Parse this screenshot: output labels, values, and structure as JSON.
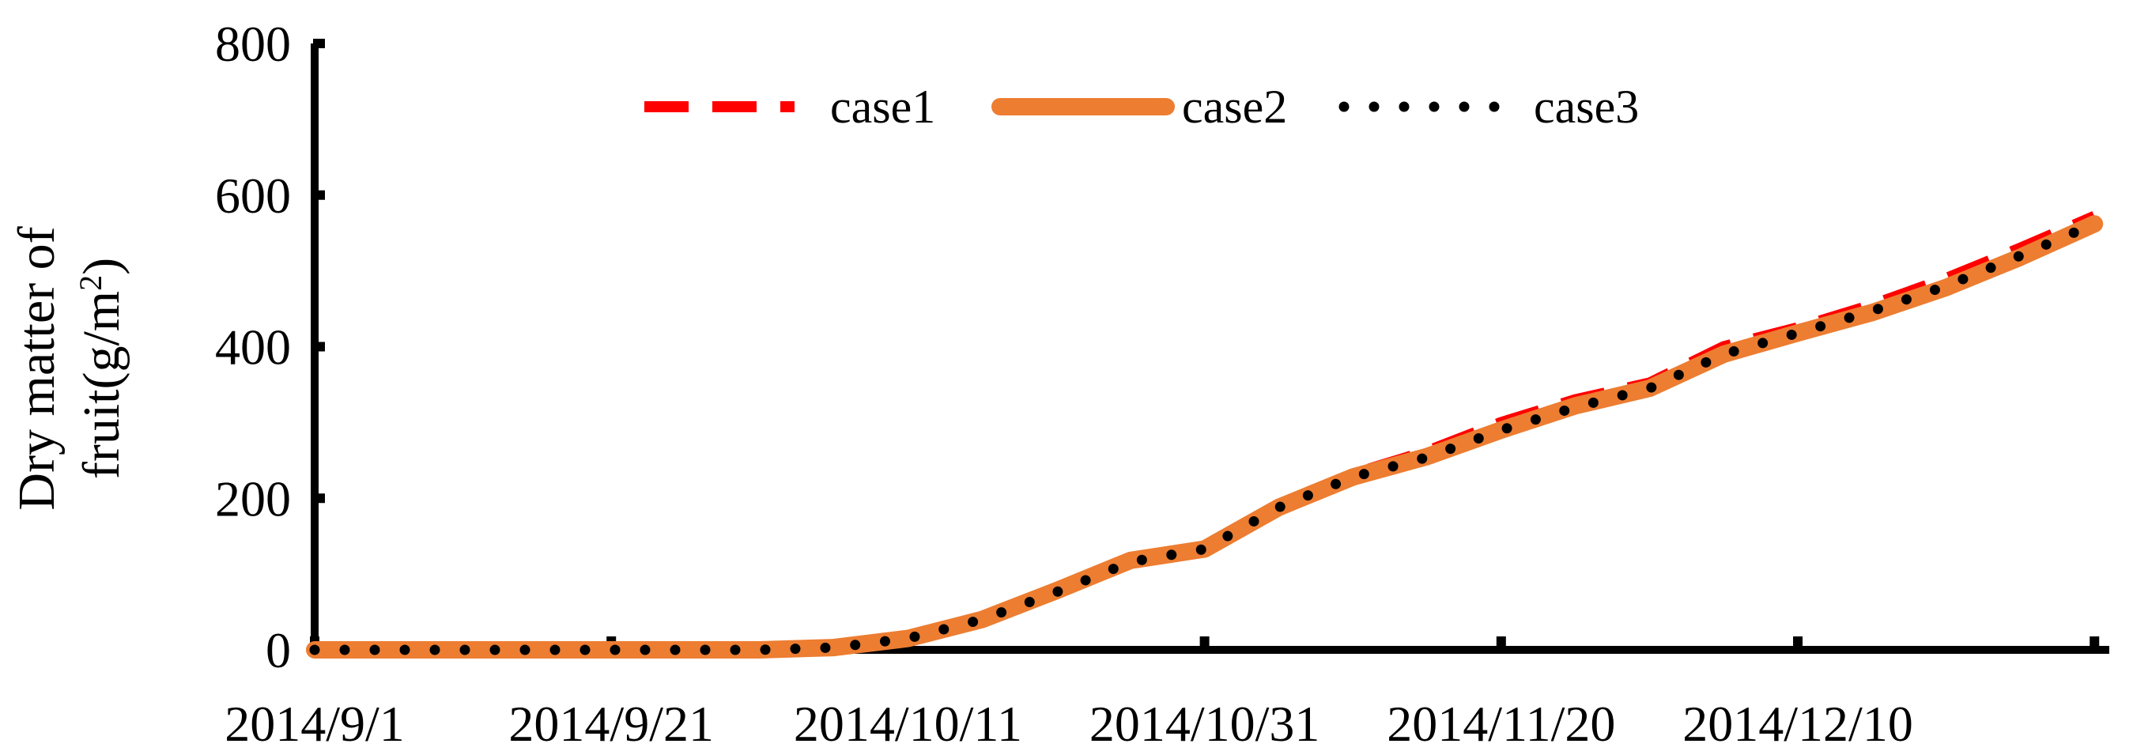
{
  "chart_data": {
    "type": "line",
    "xlabel": "",
    "ylabel_line1": "Dry matter of",
    "ylabel_line2_prefix": "fruit(g/m",
    "ylabel_line2_sup": "2",
    "ylabel_line2_suffix": ")",
    "ylim": [
      0,
      800
    ],
    "yticks": [
      0,
      200,
      400,
      600,
      800
    ],
    "ytick_labels": [
      "0",
      "200",
      "400",
      "600",
      "800"
    ],
    "xlim": [
      "2014/9/1",
      "2014/12/31"
    ],
    "xticks": [
      "2014/9/1",
      "2014/9/21",
      "2014/10/11",
      "2014/10/31",
      "2014/11/20",
      "2014/12/10",
      "2014/12/30"
    ],
    "xtick_labels": [
      "2014/9/1",
      "2014/9/21",
      "2014/10/11",
      "2014/10/31",
      "2014/11/20",
      "2014/12/10",
      ""
    ],
    "legend_position": "top-center",
    "x": [
      "2014/9/1",
      "2014/9/21",
      "2014/10/1",
      "2014/10/6",
      "2014/10/11",
      "2014/10/16",
      "2014/10/21",
      "2014/10/26",
      "2014/10/31",
      "2014/11/5",
      "2014/11/10",
      "2014/11/15",
      "2014/11/20",
      "2014/11/25",
      "2014/11/30",
      "2014/12/5",
      "2014/12/10",
      "2014/12/15",
      "2014/12/20",
      "2014/12/25",
      "2014/12/30"
    ],
    "series": [
      {
        "name": "case1",
        "style": "dashed",
        "color": "#ff0000",
        "values": [
          0,
          0,
          0,
          3,
          15,
          40,
          78,
          118,
          135,
          190,
          232,
          262,
          300,
          330,
          352,
          400,
          425,
          455,
          490,
          530,
          572
        ]
      },
      {
        "name": "case2",
        "style": "solid",
        "color": "#ed7d31",
        "values": [
          0,
          0,
          0,
          3,
          15,
          40,
          78,
          118,
          133,
          188,
          228,
          255,
          290,
          322,
          345,
          390,
          418,
          445,
          478,
          518,
          562
        ]
      },
      {
        "name": "case3",
        "style": "dotted",
        "color": "#000000",
        "values": [
          0,
          0,
          0,
          3,
          15,
          40,
          76,
          116,
          133,
          188,
          228,
          254,
          290,
          320,
          345,
          390,
          418,
          447,
          480,
          520,
          562
        ]
      }
    ]
  }
}
